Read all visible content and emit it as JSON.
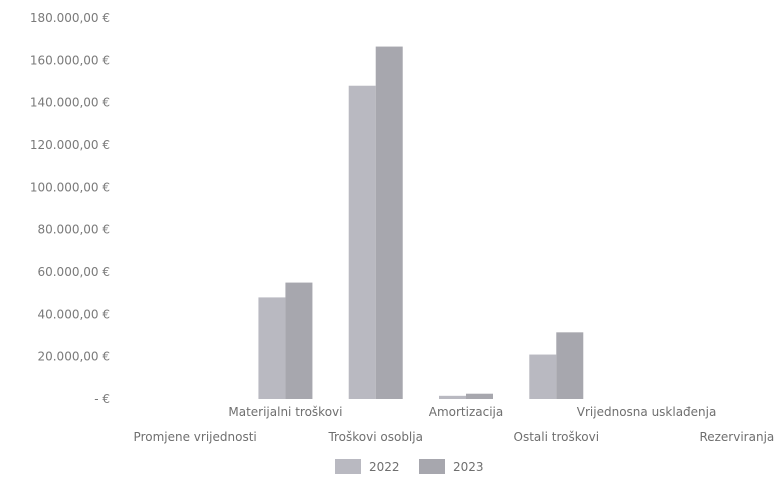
{
  "chart_data": {
    "type": "bar",
    "categories": [
      "Promjene vrijednosti",
      "Materijalni troškovi",
      "Troškovi osoblja",
      "Amortizacija",
      "Ostali troškovi",
      "Vrijednosna usklađenja",
      "Rezerviranja"
    ],
    "series": [
      {
        "name": "2022",
        "values": [
          0,
          48000,
          148000,
          1500,
          21000,
          0,
          0
        ],
        "color": "#b9b9c1"
      },
      {
        "name": "2023",
        "values": [
          0,
          55000,
          166500,
          2500,
          31500,
          0,
          0
        ],
        "color": "#a7a7ae"
      }
    ],
    "ylim": [
      0,
      180000
    ],
    "yticks": [
      "  -  €",
      "20.000,00 €",
      "40.000,00 €",
      "60.000,00 €",
      "80.000,00 €",
      "100.000,00 €",
      "120.000,00 €",
      "140.000,00 €",
      "160.000,00 €",
      "180.000,00 €"
    ],
    "grid": false,
    "legend": "bottom",
    "title": "",
    "xlabel": "",
    "ylabel": ""
  }
}
